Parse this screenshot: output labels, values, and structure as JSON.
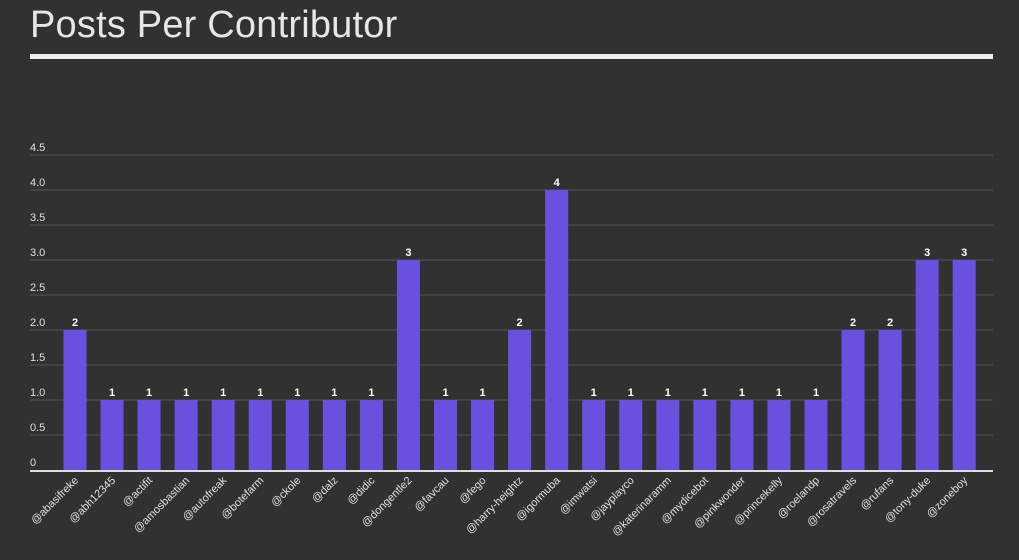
{
  "title": "Posts Per Contributor",
  "colors": {
    "background": "#313131",
    "bar": "#6a50de",
    "text": "#e6e6e6"
  },
  "chart_data": {
    "type": "bar",
    "title": "Posts Per Contributor",
    "xlabel": "",
    "ylabel": "",
    "ylim": [
      0,
      4.5
    ],
    "yticks": [
      {
        "value": 0,
        "label": "0"
      },
      {
        "value": 0.5,
        "label": "0.5"
      },
      {
        "value": 1,
        "label": "1.0"
      },
      {
        "value": 1.5,
        "label": "1.5"
      },
      {
        "value": 2,
        "label": "2.0"
      },
      {
        "value": 2.5,
        "label": "2.5"
      },
      {
        "value": 3,
        "label": "3.0"
      },
      {
        "value": 3.5,
        "label": "3.5"
      },
      {
        "value": 4,
        "label": "4.0"
      },
      {
        "value": 4.5,
        "label": "4.5"
      }
    ],
    "grid": true,
    "legend": "none",
    "categories": [
      "@abasifreke",
      "@abh12345",
      "@actifit",
      "@amosbastian",
      "@autofreak",
      "@botefarm",
      "@ckole",
      "@dalz",
      "@didic",
      "@dongentle2",
      "@favcau",
      "@fego",
      "@harry-heightz",
      "@igormuba",
      "@imwatsi",
      "@jayplayco",
      "@katerinaramm",
      "@mydicebot",
      "@pinkwonder",
      "@princekelly",
      "@roelandp",
      "@rosatravels",
      "@rufans",
      "@tony-duke",
      "@zoneboy"
    ],
    "values": [
      2,
      1,
      1,
      1,
      1,
      1,
      1,
      1,
      1,
      3,
      1,
      1,
      2,
      4,
      1,
      1,
      1,
      1,
      1,
      1,
      1,
      2,
      2,
      3,
      3
    ],
    "value_labels": [
      "2",
      "1",
      "1",
      "1",
      "1",
      "1",
      "1",
      "1",
      "1",
      "3",
      "1",
      "1",
      "2",
      "4",
      "1",
      "1",
      "1",
      "1",
      "1",
      "1",
      "1",
      "2",
      "2",
      "3",
      "3"
    ]
  }
}
